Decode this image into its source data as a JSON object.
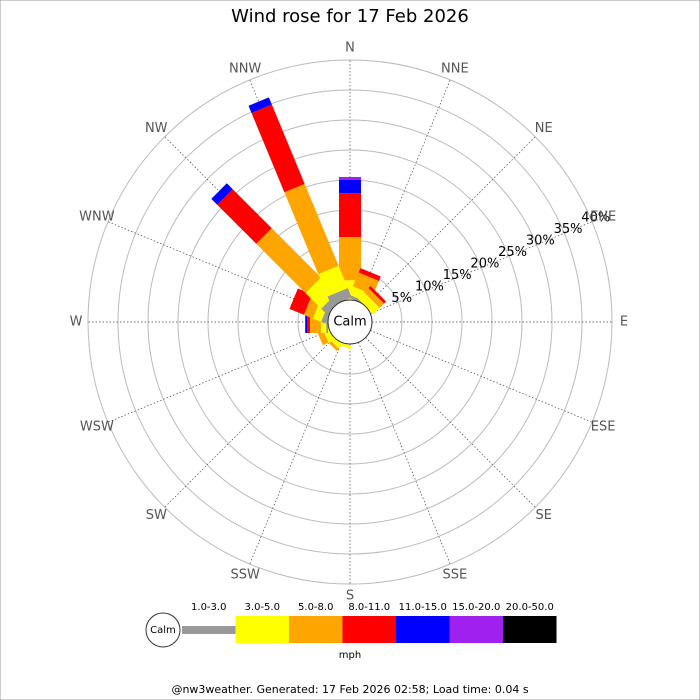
{
  "chart_data": {
    "type": "wind_rose",
    "title": "Wind rose for 17 Feb 2026",
    "directions": [
      "N",
      "NNE",
      "NE",
      "ENE",
      "E",
      "ESE",
      "SE",
      "SSE",
      "S",
      "SSW",
      "SW",
      "WSW",
      "W",
      "WNW",
      "NW",
      "NNW"
    ],
    "calm_label": "Calm",
    "rlim": [
      0,
      40
    ],
    "rticks": [
      {
        "value": 5,
        "label": "5%"
      },
      {
        "value": 10,
        "label": "10%"
      },
      {
        "value": 15,
        "label": "15%"
      },
      {
        "value": 20,
        "label": "20%"
      },
      {
        "value": 25,
        "label": "25%"
      },
      {
        "value": 30,
        "label": "30%"
      },
      {
        "value": 35,
        "label": "35%"
      },
      {
        "value": 40,
        "label": "40%"
      }
    ],
    "series": [
      {
        "name": "1.0-3.0",
        "color": "#999999",
        "values": [
          0,
          0.5,
          0,
          0,
          0,
          0,
          0,
          0,
          0,
          0,
          0,
          0,
          0.3,
          0.8,
          1.3,
          1.7
        ]
      },
      {
        "name": "3.0-5.0",
        "color": "#ffff00",
        "values": [
          3.3,
          1.5,
          1.5,
          0,
          0,
          0,
          0,
          0,
          0,
          0.5,
          0.8,
          1,
          0.9,
          1.5,
          3.7,
          4
        ]
      },
      {
        "name": "5.0-8.0",
        "color": "#ffa500",
        "values": [
          7.2,
          2.5,
          1,
          0,
          0,
          0,
          0,
          0,
          0,
          0,
          0.5,
          1,
          1.8,
          1.6,
          11.6,
          14.8
        ]
      },
      {
        "name": "8.0-11.0",
        "color": "#ff0000",
        "values": [
          7.3,
          0.8,
          0.5,
          0,
          0,
          0,
          0,
          0,
          0,
          0,
          0,
          0,
          0.5,
          2.6,
          9.2,
          14.3
        ]
      },
      {
        "name": "11.0-15.0",
        "color": "#0000ff",
        "values": [
          2.2,
          0,
          0,
          0,
          0,
          0,
          0,
          0,
          0,
          0,
          0,
          0,
          0.3,
          0,
          1.4,
          1.3
        ]
      },
      {
        "name": "15.0-20.0",
        "color": "#a020f0",
        "values": [
          0.5,
          0,
          0,
          0,
          0,
          0,
          0,
          0,
          0,
          0,
          0,
          0,
          0,
          0,
          0,
          0
        ]
      },
      {
        "name": "20.0-50.0",
        "color": "#000000",
        "values": [
          0,
          0,
          0,
          0,
          0,
          0,
          0,
          0,
          0,
          0,
          0,
          0,
          0,
          0,
          0,
          0
        ]
      }
    ],
    "legend_unit": "mph",
    "footer": "@nw3weather. Generated: 17 Feb 2026 02:58; Load time: 0.04 s"
  }
}
